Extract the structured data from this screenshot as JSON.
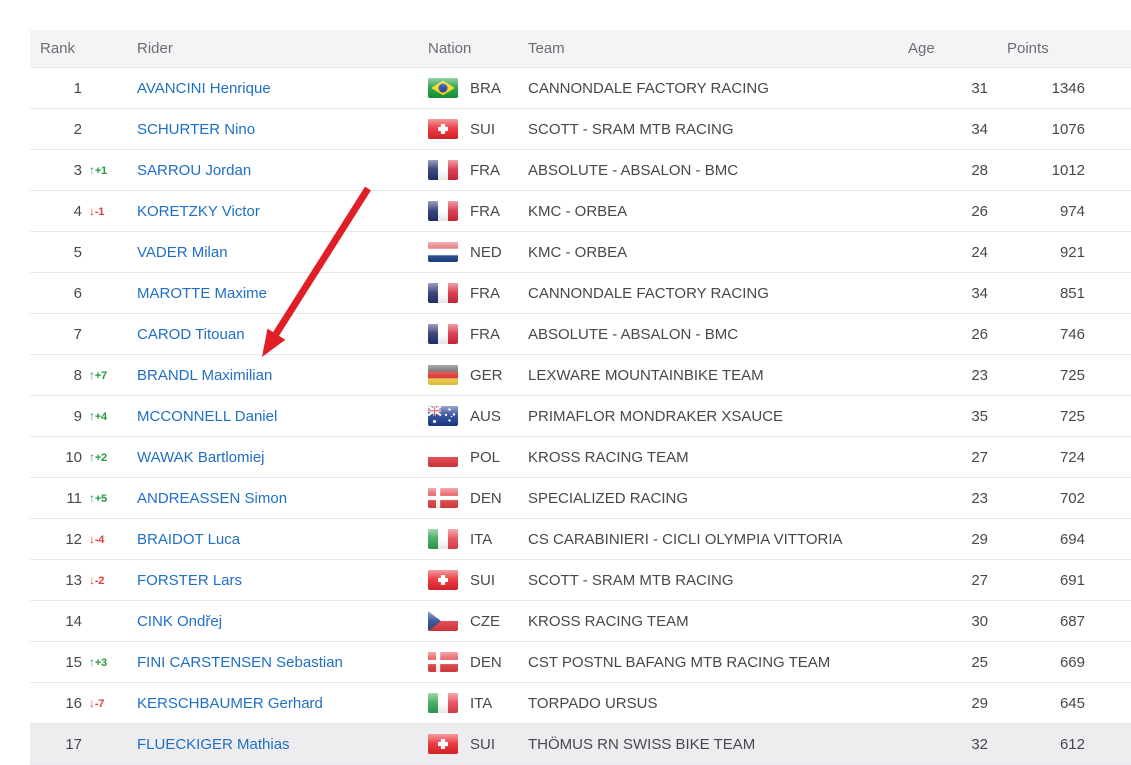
{
  "table": {
    "columns": [
      "Rank",
      "Rider",
      "Nation",
      "Team",
      "Age",
      "Points"
    ],
    "rows": [
      {
        "rank": "1",
        "move": "",
        "rider": "AVANCINI Henrique",
        "nation": "BRA",
        "team": "CANNONDALE FACTORY RACING",
        "age": "31",
        "points": "1346"
      },
      {
        "rank": "2",
        "move": "",
        "rider": "SCHURTER Nino",
        "nation": "SUI",
        "team": "SCOTT - SRAM MTB RACING",
        "age": "34",
        "points": "1076"
      },
      {
        "rank": "3",
        "move": "+1",
        "rider": "SARROU Jordan",
        "nation": "FRA",
        "team": "ABSOLUTE - ABSALON - BMC",
        "age": "28",
        "points": "1012"
      },
      {
        "rank": "4",
        "move": "-1",
        "rider": "KORETZKY Victor",
        "nation": "FRA",
        "team": "KMC - ORBEA",
        "age": "26",
        "points": "974"
      },
      {
        "rank": "5",
        "move": "",
        "rider": "VADER Milan",
        "nation": "NED",
        "team": "KMC - ORBEA",
        "age": "24",
        "points": "921"
      },
      {
        "rank": "6",
        "move": "",
        "rider": "MAROTTE Maxime",
        "nation": "FRA",
        "team": "CANNONDALE FACTORY RACING",
        "age": "34",
        "points": "851"
      },
      {
        "rank": "7",
        "move": "",
        "rider": "CAROD Titouan",
        "nation": "FRA",
        "team": "ABSOLUTE - ABSALON - BMC",
        "age": "26",
        "points": "746"
      },
      {
        "rank": "8",
        "move": "+7",
        "rider": "BRANDL Maximilian",
        "nation": "GER",
        "team": "LEXWARE MOUNTAINBIKE TEAM",
        "age": "23",
        "points": "725"
      },
      {
        "rank": "9",
        "move": "+4",
        "rider": "MCCONNELL Daniel",
        "nation": "AUS",
        "team": "PRIMAFLOR MONDRAKER XSAUCE",
        "age": "35",
        "points": "725"
      },
      {
        "rank": "10",
        "move": "+2",
        "rider": "WAWAK Bartlomiej",
        "nation": "POL",
        "team": "KROSS RACING TEAM",
        "age": "27",
        "points": "724"
      },
      {
        "rank": "11",
        "move": "+5",
        "rider": "ANDREASSEN Simon",
        "nation": "DEN",
        "team": "SPECIALIZED RACING",
        "age": "23",
        "points": "702"
      },
      {
        "rank": "12",
        "move": "-4",
        "rider": "BRAIDOT Luca",
        "nation": "ITA",
        "team": "CS CARABINIERI - CICLI OLYMPIA VITTORIA",
        "age": "29",
        "points": "694"
      },
      {
        "rank": "13",
        "move": "-2",
        "rider": "FORSTER Lars",
        "nation": "SUI",
        "team": "SCOTT - SRAM MTB RACING",
        "age": "27",
        "points": "691"
      },
      {
        "rank": "14",
        "move": "",
        "rider": "CINK Ondřej",
        "nation": "CZE",
        "team": "KROSS RACING TEAM",
        "age": "30",
        "points": "687"
      },
      {
        "rank": "15",
        "move": "+3",
        "rider": "FINI CARSTENSEN Sebastian",
        "nation": "DEN",
        "team": "CST POSTNL BAFANG MTB RACING TEAM",
        "age": "25",
        "points": "669"
      },
      {
        "rank": "16",
        "move": "-7",
        "rider": "KERSCHBAUMER Gerhard",
        "nation": "ITA",
        "team": "TORPADO URSUS",
        "age": "29",
        "points": "645"
      },
      {
        "rank": "17",
        "move": "",
        "rider": "FLUECKIGER Mathias",
        "nation": "SUI",
        "team": "THÖMUS RN SWISS BIKE TEAM",
        "age": "32",
        "points": "612"
      }
    ]
  },
  "annotation": {
    "arrow_color": "#e01e25",
    "points_to_rank": "8"
  },
  "colors": {
    "link_blue": "#1f6fc5",
    "up_green": "#219a3f",
    "down_red": "#e23c3c",
    "header_bg": "#f4f4f6",
    "row_border": "#e9e9ed",
    "text_dark": "#47474c",
    "text_muted": "#6d6d72",
    "last_row_highlight": "#ededf0"
  }
}
